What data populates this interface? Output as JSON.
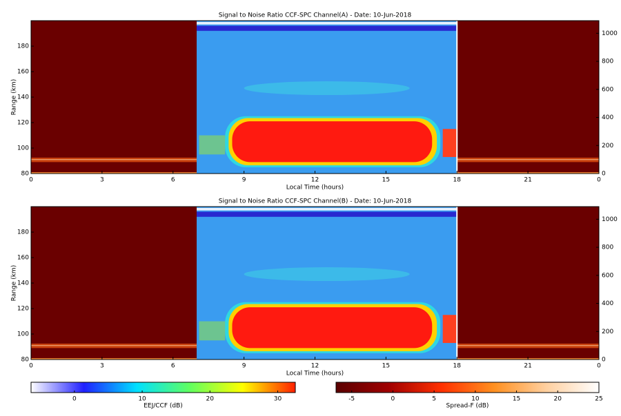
{
  "chart_data": [
    {
      "type": "heatmap",
      "title": "Signal to Noise Ratio CCF-SPC Channel(A) - Date: 10-Jun-2018",
      "x_label": "Local Time (hours)",
      "y_label": "Range (km)",
      "xlim": [
        0,
        24
      ],
      "xticks": [
        0,
        3,
        6,
        9,
        12,
        15,
        18,
        21,
        {
          "value": 24,
          "label": "0"
        }
      ],
      "ylim": [
        80,
        200
      ],
      "yticks": [
        80,
        100,
        120,
        140,
        160,
        180
      ],
      "y2lim": [
        0,
        1090
      ],
      "y2ticks": [
        0,
        200,
        400,
        600,
        800,
        1000
      ]
    },
    {
      "type": "heatmap",
      "title": "Signal to Noise Ratio CCF-SPC Channel(B) - Date: 10-Jun-2018",
      "x_label": "Local Time (hours)",
      "y_label": "Range (km)",
      "xlim": [
        0,
        24
      ],
      "xticks": [
        0,
        3,
        6,
        9,
        12,
        15,
        18,
        21,
        {
          "value": 24,
          "label": "0"
        }
      ],
      "ylim": [
        80,
        200
      ],
      "yticks": [
        80,
        100,
        120,
        140,
        160,
        180
      ],
      "y2lim": [
        0,
        1090
      ],
      "y2ticks": [
        0,
        200,
        400,
        600,
        800,
        1000
      ]
    },
    {
      "type": "colorbar",
      "label": "EEJ/CCF (dB)",
      "xlim": [
        -6.4,
        32.6
      ],
      "xticks": [
        0,
        10,
        20,
        30
      ],
      "colors": [
        "#ffffff",
        "#2020ff",
        "#00e0ff",
        "#60ff60",
        "#ffff00",
        "#ff2000"
      ]
    },
    {
      "type": "colorbar",
      "label": "Spread-F (dB)",
      "xlim": [
        -6.9,
        25
      ],
      "xticks": [
        -5,
        0,
        5,
        10,
        15,
        20,
        25
      ],
      "colors": [
        "#5a0000",
        "#a00000",
        "#ff3000",
        "#ff9020",
        "#ffd0a0",
        "#ffffff"
      ]
    }
  ]
}
